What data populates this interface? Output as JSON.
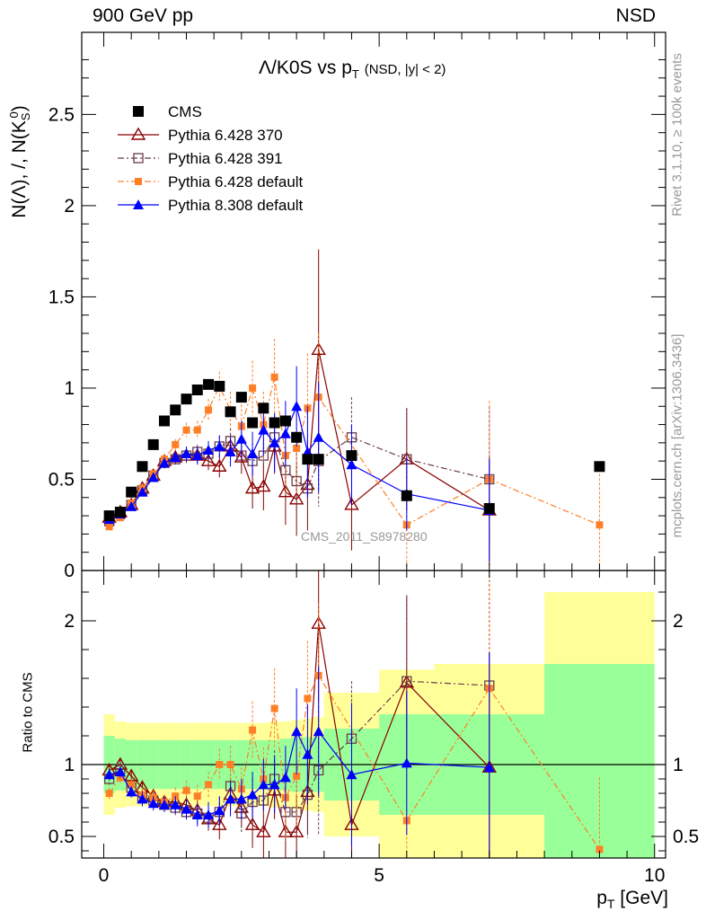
{
  "header": {
    "left": "900 GeV pp",
    "right": "NSD"
  },
  "title_parts": {
    "main": "Λ/K0S vs p",
    "sub": "T",
    "small": "(NSD, |y| < 2)"
  },
  "side_labels": {
    "right_top": "Rivet 3.1.10, ≥ 100k events",
    "right_bottom": "mcplots.cern.ch [arXiv:1306.3436]"
  },
  "y_label_main": "N(Λ), /, N(K",
  "y_label_sub": "S",
  "y_label_sup": "0",
  "y_label_end": ")",
  "ratio_ylabel": "Ratio to CMS",
  "x_label_main": "p",
  "x_label_sub": "T",
  "x_label_unit": " [GeV]",
  "analysis_label": "CMS_2011_S8978280",
  "colors": {
    "cms": "#000000",
    "p370": "#8b0000",
    "p391": "#6b3c4a",
    "p6def": "#ff7f27",
    "p8def": "#0000ff",
    "band_inner": "#99ff99",
    "band_outer": "#ffff99"
  },
  "chart_data": [
    {
      "type": "scatter",
      "panel": "main",
      "xlim": [
        -0.4,
        10.2
      ],
      "ylim": [
        0,
        2.95
      ],
      "yticks": [
        0,
        0.5,
        1,
        1.5,
        2,
        2.5
      ],
      "ytick_labels": [
        "0",
        "0.5",
        "1",
        "1.5",
        "2",
        "2.5"
      ],
      "legend_position": "top-left",
      "series": [
        {
          "name": "CMS",
          "marker": "square-filled",
          "line": "none",
          "x": [
            0.1,
            0.3,
            0.5,
            0.7,
            0.9,
            1.1,
            1.3,
            1.5,
            1.7,
            1.9,
            2.1,
            2.3,
            2.5,
            2.7,
            2.9,
            3.1,
            3.3,
            3.5,
            3.7,
            3.9,
            4.5,
            5.5,
            7.0,
            9.0
          ],
          "y": [
            0.3,
            0.32,
            0.43,
            0.57,
            0.69,
            0.82,
            0.88,
            0.94,
            0.99,
            1.02,
            1.01,
            0.87,
            0.95,
            0.81,
            0.89,
            0.81,
            0.82,
            0.73,
            0.61,
            0.61,
            0.63,
            0.41,
            0.34,
            0.57
          ]
        },
        {
          "name": "Pythia 6.428 370",
          "marker": "triangle-open",
          "line": "solid",
          "x": [
            0.1,
            0.3,
            0.5,
            0.7,
            0.9,
            1.1,
            1.3,
            1.5,
            1.7,
            1.9,
            2.1,
            2.3,
            2.5,
            2.7,
            2.9,
            3.1,
            3.3,
            3.5,
            3.7,
            3.9,
            4.5,
            5.5,
            7.0
          ],
          "y": [
            0.29,
            0.32,
            0.36,
            0.45,
            0.52,
            0.6,
            0.62,
            0.63,
            0.63,
            0.6,
            0.57,
            0.68,
            0.62,
            0.45,
            0.46,
            0.68,
            0.43,
            0.39,
            0.47,
            1.21,
            0.36,
            0.61,
            0.33
          ],
          "err": [
            0.01,
            0.01,
            0.01,
            0.02,
            0.02,
            0.03,
            0.03,
            0.04,
            0.04,
            0.05,
            0.06,
            0.07,
            0.09,
            0.11,
            0.13,
            0.15,
            0.18,
            0.2,
            0.25,
            0.55,
            0.25,
            0.28,
            0.3
          ]
        },
        {
          "name": "Pythia 6.428 391",
          "marker": "square-open",
          "line": "dash-dot",
          "x": [
            0.1,
            0.3,
            0.5,
            0.7,
            0.9,
            1.1,
            1.3,
            1.5,
            1.7,
            1.9,
            2.1,
            2.3,
            2.5,
            2.7,
            2.9,
            3.1,
            3.3,
            3.5,
            3.7,
            3.9,
            4.5,
            5.5,
            7.0
          ],
          "y": [
            0.27,
            0.31,
            0.36,
            0.44,
            0.52,
            0.59,
            0.61,
            0.63,
            0.65,
            0.64,
            0.68,
            0.71,
            0.63,
            0.6,
            0.63,
            0.73,
            0.55,
            0.49,
            0.45,
            0.6,
            0.73,
            0.61,
            0.5
          ],
          "err": [
            0.01,
            0.01,
            0.01,
            0.02,
            0.02,
            0.03,
            0.03,
            0.04,
            0.04,
            0.05,
            0.06,
            0.07,
            0.08,
            0.1,
            0.12,
            0.14,
            0.16,
            0.18,
            0.2,
            0.25,
            0.22,
            0.28,
            0.4
          ]
        },
        {
          "name": "Pythia 6.428 default",
          "marker": "square-filled-small",
          "line": "dash-dot",
          "x": [
            0.1,
            0.3,
            0.5,
            0.7,
            0.9,
            1.1,
            1.3,
            1.5,
            1.7,
            1.9,
            2.1,
            2.3,
            2.5,
            2.7,
            2.9,
            3.1,
            3.3,
            3.5,
            3.7,
            3.9,
            5.5,
            7.0,
            9.0
          ],
          "y": [
            0.24,
            0.29,
            0.37,
            0.45,
            0.53,
            0.61,
            0.69,
            0.77,
            0.77,
            0.88,
            1.01,
            0.88,
            0.79,
            1.0,
            0.8,
            1.06,
            0.63,
            0.67,
            0.89,
            0.95,
            0.25,
            0.5,
            0.25
          ],
          "err": [
            0.01,
            0.01,
            0.01,
            0.02,
            0.02,
            0.03,
            0.03,
            0.04,
            0.05,
            0.06,
            0.08,
            0.1,
            0.12,
            0.15,
            0.18,
            0.21,
            0.22,
            0.26,
            0.3,
            0.35,
            0.25,
            0.43,
            0.28
          ]
        },
        {
          "name": "Pythia 8.308 default",
          "marker": "triangle-filled",
          "line": "solid",
          "x": [
            0.1,
            0.3,
            0.5,
            0.7,
            0.9,
            1.1,
            1.3,
            1.5,
            1.7,
            1.9,
            2.1,
            2.3,
            2.5,
            2.7,
            2.9,
            3.1,
            3.3,
            3.5,
            3.7,
            3.9,
            4.5,
            5.5,
            7.0
          ],
          "y": [
            0.28,
            0.31,
            0.35,
            0.43,
            0.51,
            0.59,
            0.62,
            0.64,
            0.63,
            0.66,
            0.68,
            0.65,
            0.72,
            0.64,
            0.77,
            0.7,
            0.75,
            0.9,
            0.65,
            0.73,
            0.58,
            0.42,
            0.33
          ],
          "err": [
            0.01,
            0.01,
            0.01,
            0.02,
            0.02,
            0.03,
            0.03,
            0.04,
            0.05,
            0.05,
            0.06,
            0.08,
            0.1,
            0.12,
            0.14,
            0.16,
            0.18,
            0.22,
            0.25,
            0.3,
            0.22,
            0.2,
            0.28
          ]
        }
      ]
    },
    {
      "type": "scatter",
      "panel": "ratio",
      "ylabel": "Ratio to CMS",
      "xlabel": "pT [GeV]",
      "xlim": [
        -0.4,
        10.2
      ],
      "ylim": [
        0.35,
        2.35
      ],
      "xticks": [
        0,
        5,
        10
      ],
      "xtick_labels": [
        "0",
        "5",
        "10"
      ],
      "yticks": [
        0.5,
        1,
        2
      ],
      "ytick_labels": [
        "0.5",
        "1",
        "2"
      ],
      "reference_line": 1,
      "bands": {
        "edges": [
          0,
          0.2,
          0.4,
          0.6,
          0.8,
          1.0,
          1.2,
          1.4,
          1.6,
          1.8,
          2.0,
          2.2,
          2.4,
          2.6,
          2.8,
          3.0,
          3.2,
          3.4,
          3.6,
          3.8,
          4.0,
          5.0,
          6.0,
          8.0,
          10.0
        ],
        "inner_half_width": [
          0.2,
          0.18,
          0.17,
          0.17,
          0.17,
          0.17,
          0.17,
          0.17,
          0.17,
          0.17,
          0.17,
          0.17,
          0.17,
          0.17,
          0.17,
          0.17,
          0.18,
          0.19,
          0.19,
          0.19,
          0.25,
          0.35,
          0.35,
          0.7
        ],
        "outer_half_width": [
          0.35,
          0.3,
          0.29,
          0.29,
          0.29,
          0.29,
          0.29,
          0.29,
          0.29,
          0.29,
          0.29,
          0.29,
          0.29,
          0.29,
          0.29,
          0.3,
          0.3,
          0.31,
          0.32,
          0.33,
          0.5,
          0.66,
          0.7,
          1.2
        ]
      },
      "series": [
        {
          "name": "Pythia 6.428 370",
          "x": [
            0.1,
            0.3,
            0.5,
            0.7,
            0.9,
            1.1,
            1.3,
            1.5,
            1.7,
            1.9,
            2.1,
            2.3,
            2.5,
            2.7,
            2.9,
            3.1,
            3.3,
            3.5,
            3.7,
            3.9,
            4.5,
            5.5,
            7.0
          ],
          "y": [
            0.96,
            1.0,
            0.92,
            0.84,
            0.78,
            0.74,
            0.74,
            0.72,
            0.68,
            0.62,
            0.58,
            0.79,
            0.7,
            0.58,
            0.53,
            0.82,
            0.53,
            0.53,
            0.81,
            1.98,
            0.58,
            1.57,
            0.98
          ],
          "err": [
            0.04,
            0.04,
            0.04,
            0.05,
            0.05,
            0.05,
            0.06,
            0.06,
            0.07,
            0.08,
            0.1,
            0.12,
            0.14,
            0.16,
            0.18,
            0.2,
            0.22,
            0.25,
            0.3,
            0.55,
            0.4,
            0.6,
            0.8
          ]
        },
        {
          "name": "Pythia 6.428 391",
          "x": [
            0.1,
            0.3,
            0.5,
            0.7,
            0.9,
            1.1,
            1.3,
            1.5,
            1.7,
            1.9,
            2.1,
            2.3,
            2.5,
            2.7,
            2.9,
            3.1,
            3.3,
            3.5,
            3.7,
            3.9,
            4.5,
            5.5,
            7.0
          ],
          "y": [
            0.9,
            0.97,
            0.84,
            0.77,
            0.75,
            0.72,
            0.7,
            0.67,
            0.66,
            0.63,
            0.67,
            0.85,
            0.66,
            0.74,
            0.75,
            0.9,
            0.67,
            0.67,
            0.79,
            0.96,
            1.18,
            1.58,
            1.55
          ],
          "err": [
            0.04,
            0.04,
            0.04,
            0.05,
            0.05,
            0.05,
            0.06,
            0.06,
            0.07,
            0.08,
            0.1,
            0.12,
            0.14,
            0.16,
            0.18,
            0.2,
            0.22,
            0.25,
            0.3,
            0.45,
            0.4,
            0.6,
            0.9
          ]
        },
        {
          "name": "Pythia 6.428 default",
          "x": [
            0.1,
            0.3,
            0.5,
            0.7,
            0.9,
            1.1,
            1.3,
            1.5,
            1.7,
            1.9,
            2.1,
            2.3,
            2.5,
            2.7,
            2.9,
            3.1,
            3.3,
            3.5,
            3.7,
            3.9,
            5.5,
            7.0,
            9.0
          ],
          "y": [
            0.8,
            0.91,
            0.86,
            0.79,
            0.77,
            0.74,
            0.78,
            0.82,
            0.78,
            0.86,
            1.0,
            1.0,
            0.83,
            1.24,
            0.9,
            1.39,
            0.77,
            0.92,
            1.46,
            1.62,
            0.61,
            1.53,
            0.41
          ],
          "err": [
            0.04,
            0.04,
            0.04,
            0.05,
            0.05,
            0.05,
            0.06,
            0.07,
            0.08,
            0.09,
            0.11,
            0.13,
            0.15,
            0.2,
            0.22,
            0.28,
            0.3,
            0.35,
            0.4,
            0.5,
            0.45,
            0.9,
            0.5
          ]
        },
        {
          "name": "Pythia 8.308 default",
          "x": [
            0.1,
            0.3,
            0.5,
            0.7,
            0.9,
            1.1,
            1.3,
            1.5,
            1.7,
            1.9,
            2.1,
            2.3,
            2.5,
            2.7,
            2.9,
            3.1,
            3.3,
            3.5,
            3.7,
            3.9,
            4.5,
            5.5,
            7.0
          ],
          "y": [
            0.93,
            0.95,
            0.81,
            0.76,
            0.73,
            0.72,
            0.72,
            0.69,
            0.65,
            0.65,
            0.68,
            0.76,
            0.76,
            0.79,
            0.86,
            0.86,
            0.91,
            1.23,
            1.07,
            1.23,
            0.93,
            1.01,
            0.98
          ],
          "err": [
            0.04,
            0.04,
            0.04,
            0.05,
            0.05,
            0.05,
            0.06,
            0.07,
            0.08,
            0.09,
            0.1,
            0.12,
            0.14,
            0.16,
            0.18,
            0.2,
            0.22,
            0.3,
            0.35,
            0.45,
            0.5,
            0.5,
            0.8
          ]
        }
      ]
    }
  ]
}
